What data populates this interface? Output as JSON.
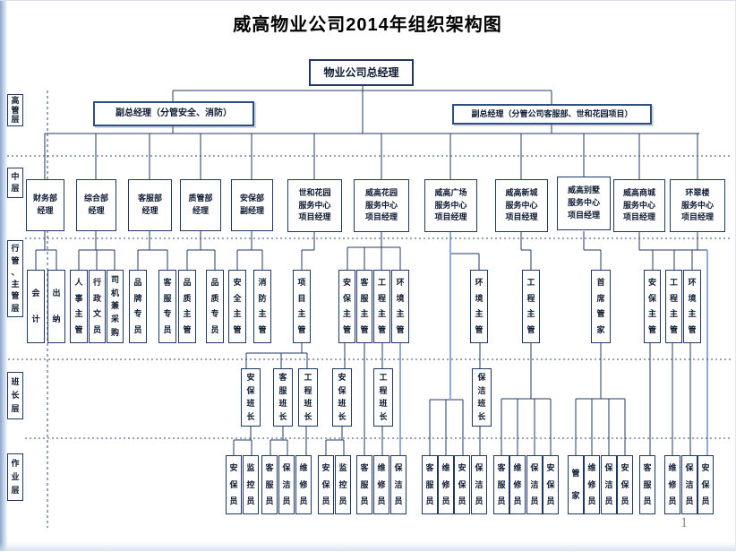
{
  "title": "威高物业公司2014年组织架构图",
  "page_number": "1",
  "general_manager": "物业公司总经理",
  "deputies": [
    "副总经理（分管安全、消防）",
    "副总经理（分管公司客服部、世和花园项目）"
  ],
  "layer_labels": [
    "高管层",
    "中层",
    "行管、主管层",
    "班长层",
    "作业层"
  ],
  "dept": [
    "财务部\n经理",
    "综合部\n经理",
    "客服部\n经理",
    "质管部\n经理",
    "安保部\n副经理",
    "世和花园\n服务中心\n项目经理",
    "威高花园\n服务中心\n项目经理",
    "威高广场\n服务中心\n项目经理",
    "威高新城\n服务中心\n项目经理",
    "威高别墅\n服务中心\n项目经理",
    "威高商城\n服务中心\n项目经理",
    "环翠楼\n服务中心\n项目经理"
  ],
  "sup": [
    "会计",
    "出纳",
    "人事主管",
    "行政文员",
    "司机兼采购",
    "品牌专员",
    "客服专员",
    "品质主管",
    "品质专员",
    "安全主管",
    "消防主管",
    "项目主管",
    "安保主管",
    "客服主管",
    "工程主管",
    "环境主管",
    "环境主管",
    "工程主管",
    "首席管家",
    "安保主管",
    "工程主管",
    "环境主管"
  ],
  "foreman": [
    "安保班长",
    "客服班长",
    "工程班长",
    "安保班长",
    "工程班长",
    "保洁班长"
  ],
  "worker": [
    "安保员",
    "监控员",
    "客服员",
    "保洁员",
    "维修员",
    "安保员",
    "监控员",
    "客服员",
    "维修员",
    "保洁员",
    "客服员",
    "维修员",
    "安保员",
    "保洁员",
    "客服员",
    "维修员",
    "保洁员",
    "安保员",
    "管家",
    "维修员",
    "保洁员",
    "安保员",
    "客服员",
    "维修员",
    "保洁员",
    "安保员"
  ],
  "colors": {
    "line_dark": "#1F3864",
    "line_light": "#8FAADC",
    "title_text": "#000000"
  }
}
